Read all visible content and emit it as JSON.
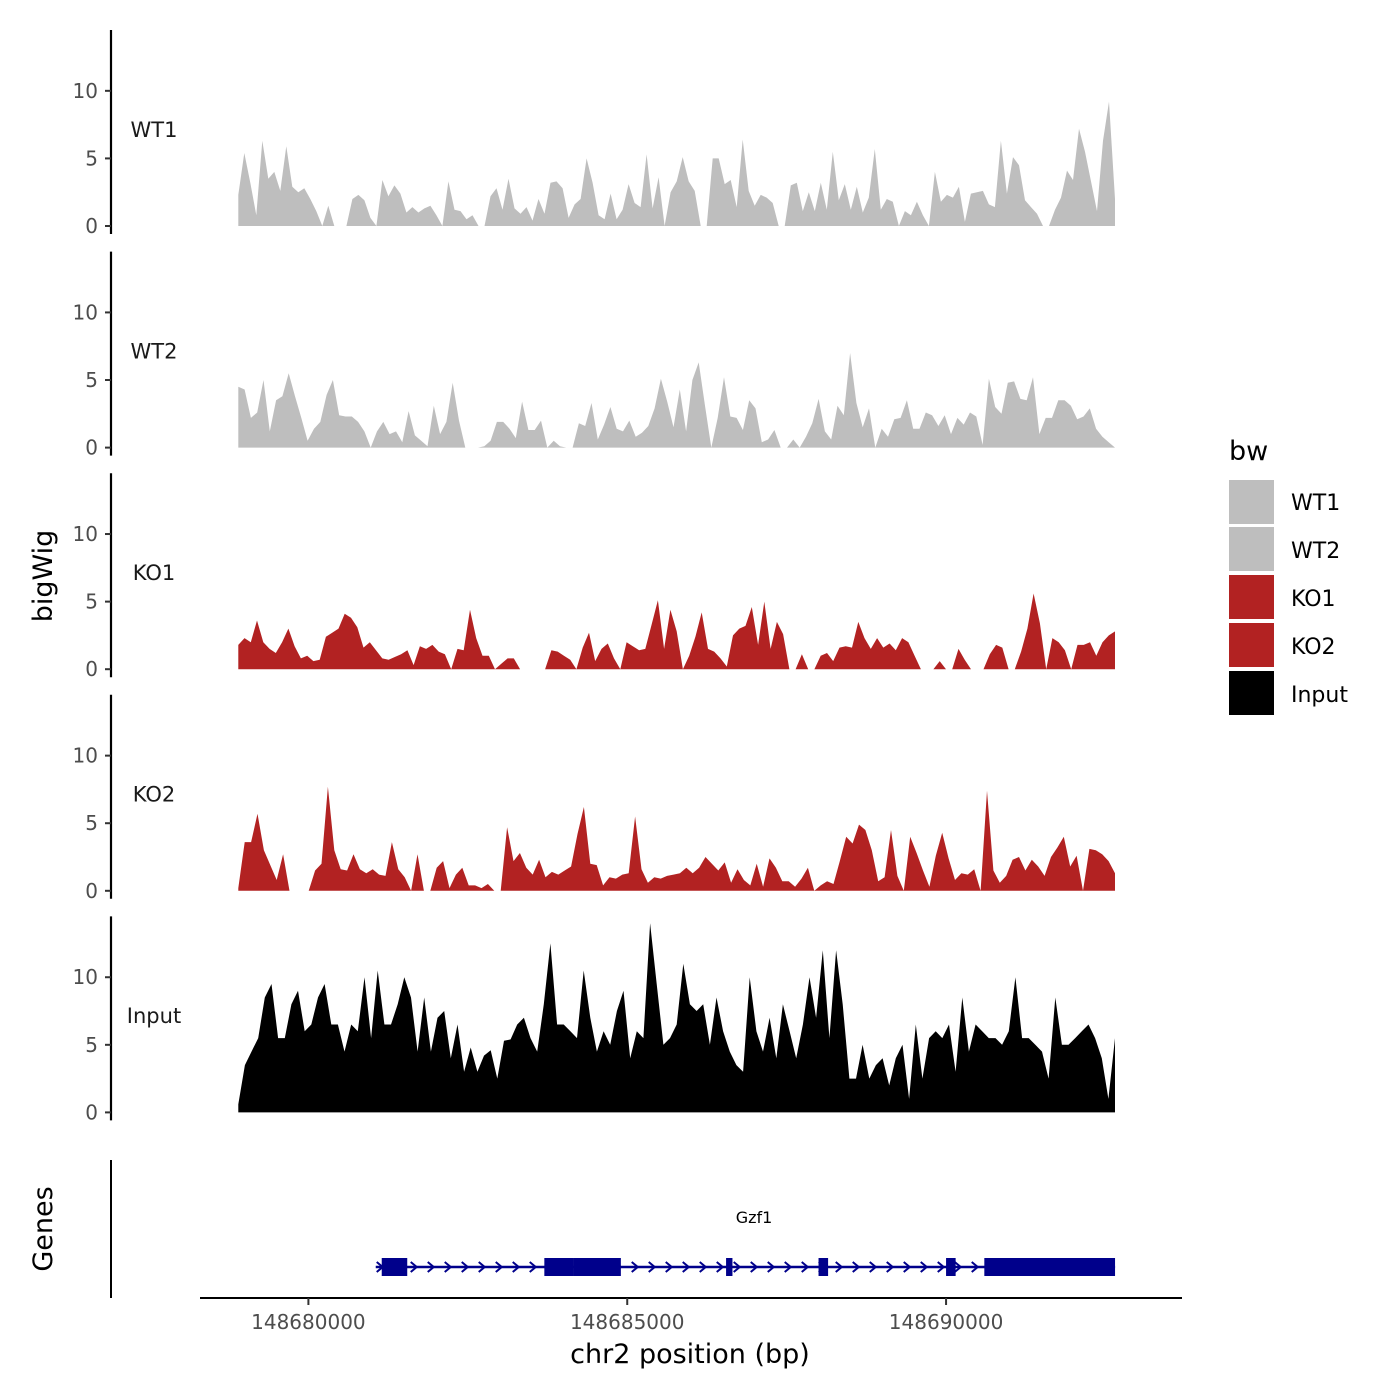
{
  "chart_data": {
    "type": "area",
    "title": "",
    "ylabel": "bigWig",
    "xlabel": "chr2 position (bp)",
    "genes_label": "Genes",
    "xlim": [
      148678300,
      148693700
    ],
    "x_start": 148678900,
    "x_end": 148692650,
    "ylim": [
      0,
      14.5
    ],
    "y_ticks": [
      0,
      5,
      10
    ],
    "y_tick_labels": [
      "0",
      "5",
      "10"
    ],
    "x_ticks": [
      148680000,
      148690000
    ],
    "x_tick_labels": [
      "148680000",
      "148690000"
    ],
    "x_tick_minor": [
      148685000
    ],
    "x_tick_minor_labels": [
      "148685000"
    ],
    "legend": {
      "title": "bw",
      "entries": [
        {
          "name": "WT1",
          "color": "#BEBEBE"
        },
        {
          "name": "WT2",
          "color": "#BEBEBE"
        },
        {
          "name": "KO1",
          "color": "#B22222"
        },
        {
          "name": "KO2",
          "color": "#B22222"
        },
        {
          "name": "Input",
          "color": "#000000"
        }
      ]
    },
    "series": [
      {
        "name": "WT1",
        "color": "#BEBEBE",
        "values": [
          2.3,
          5.4,
          3.2,
          0.8,
          6.3,
          3.5,
          4.0,
          2.6,
          5.9,
          2.9,
          2.5,
          2.8,
          2.0,
          1.1,
          0.0,
          1.5,
          0.0,
          0.0,
          0.0,
          2.0,
          2.3,
          1.9,
          0.6,
          0.0,
          3.4,
          2.2,
          3.0,
          2.4,
          1.0,
          1.4,
          1.0,
          1.3,
          1.5,
          0.8,
          0.0,
          3.3,
          1.2,
          1.1,
          0.5,
          0.8,
          0.0,
          0.0,
          2.2,
          2.8,
          1.2,
          3.5,
          1.3,
          0.9,
          1.4,
          0.4,
          2.0,
          0.9,
          3.2,
          3.3,
          2.8,
          0.6,
          1.6,
          2.0,
          5.0,
          3.2,
          0.8,
          0.5,
          2.4,
          0.5,
          1.2,
          3.1,
          1.7,
          1.4,
          5.3,
          1.3,
          3.6,
          0.0,
          2.5,
          3.3,
          5.1,
          3.3,
          2.6,
          0.0,
          0.0,
          5.0,
          5.0,
          3.1,
          3.4,
          1.4,
          6.4,
          2.6,
          1.5,
          2.3,
          2.1,
          1.7,
          0.0,
          0.0,
          3.0,
          3.2,
          1.1,
          2.5,
          1.1,
          3.2,
          1.2,
          5.5,
          1.9,
          3.1,
          1.2,
          2.9,
          1.0,
          2.1,
          5.7,
          1.2,
          2.0,
          1.8,
          0.0,
          1.1,
          0.8,
          1.8,
          0.8,
          0.0,
          4.0,
          1.8,
          2.3,
          2.1,
          2.9,
          0.3,
          2.4,
          2.5,
          2.6,
          1.6,
          1.4,
          6.3,
          2.4,
          5.1,
          4.5,
          1.9,
          1.4,
          0.9,
          0.0,
          0.0,
          1.2,
          2.1,
          4.1,
          3.4,
          7.2,
          5.5,
          3.3,
          1.1,
          6.3,
          9.2,
          2.0
        ]
      },
      {
        "name": "WT2",
        "color": "#BEBEBE",
        "values": [
          4.5,
          4.3,
          2.2,
          2.6,
          5.0,
          1.2,
          3.5,
          3.8,
          5.5,
          3.8,
          2.2,
          0.5,
          1.4,
          1.9,
          3.9,
          5.0,
          2.4,
          2.3,
          2.3,
          1.9,
          1.2,
          0.0,
          1.2,
          1.9,
          1.0,
          1.2,
          0.4,
          2.7,
          0.9,
          0.5,
          0.1,
          3.1,
          1.0,
          1.9,
          4.8,
          2.0,
          0.0,
          0.0,
          0.0,
          0.1,
          0.5,
          1.9,
          1.9,
          1.4,
          0.7,
          3.4,
          1.3,
          1.3,
          2.0,
          0.0,
          0.5,
          0.1,
          0.0,
          0.0,
          1.8,
          1.6,
          3.3,
          0.6,
          1.7,
          3.0,
          1.4,
          1.2,
          2.0,
          0.8,
          1.1,
          1.6,
          2.9,
          5.1,
          3.4,
          1.5,
          4.3,
          1.2,
          5.0,
          6.3,
          3.1,
          0.0,
          2.2,
          5.2,
          2.3,
          2.2,
          1.3,
          3.5,
          2.9,
          0.4,
          0.6,
          1.3,
          0.0,
          0.0,
          0.6,
          0.0,
          0.8,
          1.8,
          3.6,
          1.2,
          0.6,
          3.1,
          2.4,
          7.0,
          3.3,
          1.5,
          2.9,
          0.0,
          1.4,
          0.8,
          2.1,
          2.2,
          3.5,
          1.4,
          1.4,
          2.6,
          2.4,
          1.6,
          2.4,
          1.0,
          2.2,
          1.7,
          2.6,
          2.3,
          0.2,
          5.1,
          3.0,
          2.5,
          4.8,
          4.9,
          3.6,
          3.5,
          5.2,
          1.0,
          2.2,
          2.2,
          3.5,
          3.5,
          3.1,
          2.1,
          2.3,
          2.9,
          1.4,
          0.8,
          0.4,
          0.0
        ]
      },
      {
        "name": "KO1",
        "color": "#B22222",
        "values": [
          1.8,
          2.3,
          2.0,
          3.6,
          2.0,
          1.5,
          1.2,
          2.0,
          3.0,
          1.7,
          0.8,
          1.0,
          0.6,
          0.7,
          2.4,
          2.7,
          3.0,
          4.1,
          3.8,
          3.1,
          1.6,
          2.0,
          1.4,
          0.8,
          0.7,
          0.9,
          1.1,
          1.4,
          0.3,
          1.7,
          1.5,
          1.8,
          1.3,
          1.1,
          0.0,
          1.5,
          1.4,
          4.4,
          2.3,
          1.0,
          1.0,
          0.0,
          0.4,
          0.8,
          0.8,
          0.0,
          0.0,
          0.0,
          0.0,
          0.0,
          1.4,
          1.3,
          1.0,
          0.7,
          0.0,
          1.6,
          2.7,
          0.6,
          1.5,
          1.9,
          0.8,
          0.0,
          2.0,
          1.7,
          1.4,
          1.5,
          3.3,
          5.1,
          1.5,
          4.4,
          2.8,
          0.0,
          1.0,
          2.4,
          4.2,
          1.5,
          1.3,
          0.8,
          0.2,
          2.5,
          3.0,
          3.2,
          4.6,
          1.8,
          5.0,
          1.5,
          3.5,
          2.6,
          0.0,
          0.0,
          1.1,
          0.0,
          0.0,
          1.0,
          1.2,
          0.6,
          1.6,
          1.7,
          1.6,
          3.5,
          2.3,
          1.5,
          2.3,
          1.6,
          1.9,
          1.4,
          2.3,
          2.0,
          1.0,
          0.0,
          0.0,
          0.0,
          0.6,
          0.0,
          0.0,
          1.5,
          0.7,
          0.0,
          0.0,
          0.0,
          1.1,
          1.8,
          1.6,
          0.0,
          0.0,
          1.3,
          3.0,
          5.6,
          3.4,
          0.0,
          2.3,
          2.0,
          1.4,
          0.0,
          1.8,
          1.8,
          2.0,
          1.0,
          2.0,
          2.5,
          2.8
        ]
      },
      {
        "name": "KO2",
        "color": "#B22222",
        "values": [
          0.2,
          3.6,
          3.6,
          5.7,
          3.0,
          1.9,
          0.8,
          2.7,
          0.0,
          0.0,
          0.0,
          0.0,
          1.5,
          2.0,
          7.7,
          3.0,
          1.6,
          1.5,
          2.7,
          1.6,
          1.3,
          1.6,
          1.2,
          1.1,
          3.6,
          1.6,
          1.0,
          0.0,
          2.7,
          0.0,
          0.0,
          1.7,
          2.2,
          0.2,
          1.2,
          1.7,
          0.4,
          0.4,
          0.2,
          0.5,
          0.0,
          0.0,
          4.7,
          2.2,
          2.8,
          1.7,
          1.2,
          2.3,
          1.0,
          1.4,
          1.2,
          1.5,
          1.8,
          4.2,
          6.2,
          2.0,
          1.9,
          0.4,
          1.0,
          0.9,
          1.2,
          1.3,
          5.5,
          1.6,
          0.6,
          1.0,
          0.9,
          1.1,
          1.2,
          1.3,
          1.7,
          1.3,
          1.7,
          2.5,
          2.0,
          1.5,
          2.1,
          0.6,
          1.6,
          0.8,
          0.4,
          2.0,
          0.3,
          2.4,
          1.7,
          0.7,
          0.7,
          0.3,
          0.9,
          1.7,
          0.0,
          0.4,
          0.7,
          0.5,
          2.2,
          4.0,
          3.5,
          4.9,
          4.5,
          3.0,
          0.7,
          1.0,
          4.5,
          1.1,
          0.0,
          4.0,
          2.8,
          1.5,
          0.3,
          2.6,
          4.3,
          2.4,
          0.8,
          1.3,
          1.2,
          1.6,
          0.0,
          7.4,
          1.5,
          0.6,
          1.1,
          2.3,
          2.5,
          1.5,
          2.3,
          1.8,
          1.1,
          2.5,
          3.2,
          4.0,
          1.8,
          2.6,
          0.0,
          3.1,
          3.0,
          2.7,
          2.2,
          1.3
        ]
      },
      {
        "name": "Input",
        "color": "#000000",
        "values": [
          0.6,
          3.5,
          4.5,
          5.5,
          8.5,
          9.5,
          5.5,
          5.5,
          8.0,
          9.0,
          6.0,
          6.5,
          8.5,
          9.5,
          6.5,
          6.5,
          4.5,
          6.5,
          6.0,
          10.0,
          5.5,
          10.5,
          6.5,
          6.5,
          8.0,
          10.0,
          8.5,
          4.5,
          8.5,
          4.5,
          7.0,
          7.5,
          4.0,
          6.5,
          3.0,
          4.8,
          3.0,
          4.2,
          4.6,
          2.5,
          5.3,
          5.4,
          6.5,
          7.0,
          5.5,
          4.5,
          8.0,
          12.5,
          6.5,
          6.5,
          6.0,
          5.5,
          10.5,
          7.0,
          4.5,
          6.0,
          5.0,
          7.5,
          9.0,
          4.0,
          6.0,
          5.5,
          14.0,
          9.5,
          5.0,
          5.5,
          6.5,
          11.0,
          8.0,
          7.5,
          8.0,
          5.0,
          8.5,
          6.0,
          4.5,
          3.5,
          3.0,
          10.0,
          6.0,
          4.5,
          7.0,
          4.0,
          8.0,
          6.0,
          4.0,
          6.5,
          10.0,
          7.0,
          12.0,
          5.5,
          12.0,
          8.0,
          2.5,
          2.5,
          5.0,
          2.5,
          3.5,
          4.0,
          2.0,
          4.0,
          5.0,
          1.0,
          6.5,
          2.5,
          5.5,
          6.0,
          5.5,
          6.5,
          3.0,
          8.5,
          4.5,
          6.5,
          6.0,
          5.5,
          5.5,
          5.0,
          6.0,
          10.0,
          5.5,
          5.5,
          5.0,
          4.5,
          2.5,
          8.5,
          5.0,
          5.0,
          5.5,
          6.0,
          6.5,
          5.5,
          4.0,
          1.0,
          5.5
        ]
      }
    ],
    "gene": {
      "name": "Gzf1",
      "start": 148681150,
      "end": 148692650,
      "strand": "+",
      "exons": [
        [
          148681150,
          148681550
        ],
        [
          148683700,
          148684150
        ],
        [
          148684150,
          148684900
        ],
        [
          148686550,
          148686650
        ],
        [
          148688000,
          148688150
        ],
        [
          148690000,
          148690150
        ],
        [
          148690600,
          148692650
        ]
      ]
    }
  }
}
